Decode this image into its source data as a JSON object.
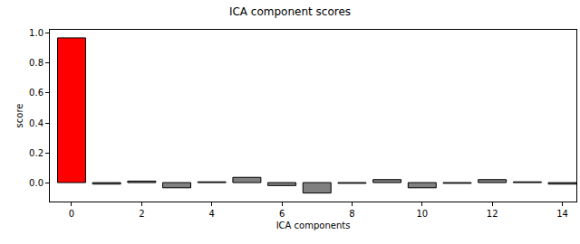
{
  "chart_data": {
    "type": "bar",
    "title": "ICA component scores",
    "x_label": "ICA components",
    "y_label": "score",
    "x": [
      0,
      1,
      2,
      3,
      4,
      5,
      6,
      7,
      8,
      9,
      10,
      11,
      12,
      13,
      14
    ],
    "values": [
      0.97,
      -0.01,
      0.01,
      -0.035,
      0.005,
      0.035,
      -0.02,
      -0.07,
      -0.005,
      0.02,
      -0.035,
      -0.005,
      0.02,
      0.005,
      -0.01
    ],
    "colors": [
      "#ff0000",
      "#808080",
      "#808080",
      "#808080",
      "#808080",
      "#808080",
      "#808080",
      "#808080",
      "#808080",
      "#808080",
      "#808080",
      "#808080",
      "#808080",
      "#808080",
      "#808080"
    ],
    "xlim": [
      -0.62,
      14.4
    ],
    "xticks": [
      0,
      2,
      4,
      6,
      8,
      10,
      12,
      14
    ],
    "ylim": [
      -0.127,
      1.024
    ],
    "yticks": [
      {
        "value": 0,
        "label": "0.0"
      },
      0.2,
      0.4,
      0.6,
      0.8,
      {
        "value": 1,
        "label": "1.0"
      }
    ],
    "grid": false
  }
}
